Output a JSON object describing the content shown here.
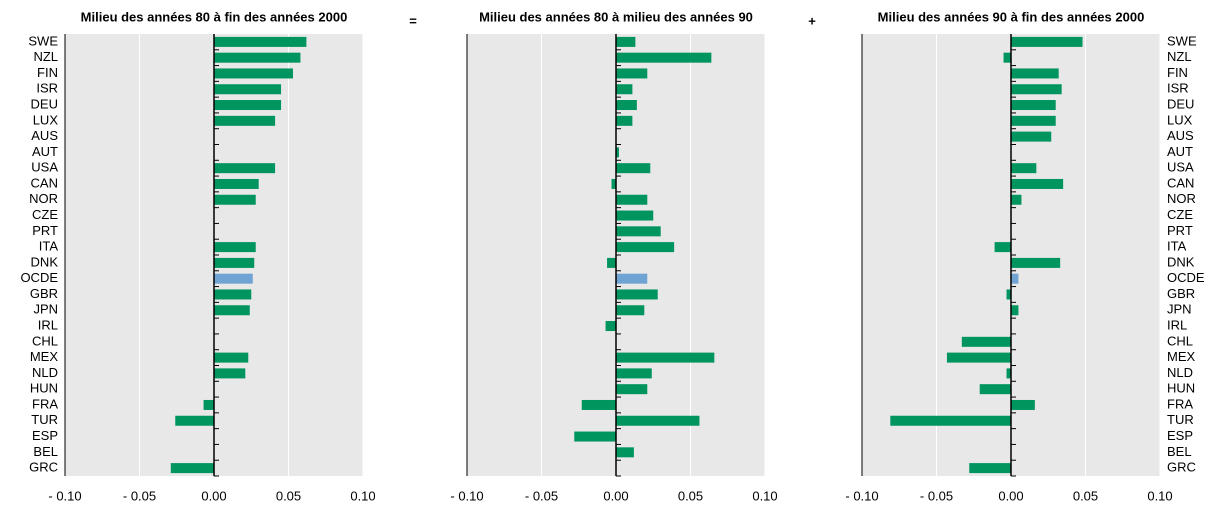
{
  "operators": [
    "=",
    "+"
  ],
  "chart_data": [
    {
      "type": "barh",
      "title": "Milieu des années 80 à fin des années 2000",
      "category_labels": "left",
      "categories": [
        "SWE",
        "NZL",
        "FIN",
        "ISR",
        "DEU",
        "LUX",
        "AUS",
        "AUT",
        "USA",
        "CAN",
        "NOR",
        "CZE",
        "PRT",
        "ITA",
        "DNK",
        "OCDE",
        "GBR",
        "JPN",
        "IRL",
        "CHL",
        "MEX",
        "NLD",
        "HUN",
        "FRA",
        "TUR",
        "ESP",
        "BEL",
        "GRC"
      ],
      "values": [
        0.062,
        0.058,
        0.053,
        0.045,
        0.045,
        0.041,
        0,
        0,
        0.041,
        0.03,
        0.028,
        0,
        0,
        0.028,
        0.027,
        0.026,
        0.025,
        0.024,
        0,
        0,
        0.023,
        0.021,
        0,
        -0.007,
        -0.026,
        0,
        0,
        -0.029
      ],
      "color": "#00945e",
      "highlight": {
        "category": "OCDE",
        "color": "#6fa3d3"
      },
      "xlim": [
        -0.1,
        0.1
      ],
      "xticks": [
        {
          "value": -0.1,
          "label": "- 0.10"
        },
        {
          "value": -0.05,
          "label": "- 0.05"
        },
        {
          "value": 0,
          "label": "0.00"
        },
        {
          "value": 0.05,
          "label": "0.05"
        },
        {
          "value": 0.1,
          "label": "0.10"
        }
      ],
      "grid": true
    },
    {
      "type": "barh",
      "title": "Milieu des années 80 à milieu des années 90",
      "category_labels": "none",
      "categories": [
        "SWE",
        "NZL",
        "FIN",
        "ISR",
        "DEU",
        "LUX",
        "AUS",
        "AUT",
        "USA",
        "CAN",
        "NOR",
        "CZE",
        "PRT",
        "ITA",
        "DNK",
        "OCDE",
        "GBR",
        "JPN",
        "IRL",
        "CHL",
        "MEX",
        "NLD",
        "HUN",
        "FRA",
        "TUR",
        "ESP",
        "BEL",
        "GRC"
      ],
      "values": [
        0.013,
        0.064,
        0.021,
        0.011,
        0.014,
        0.011,
        0,
        0.002,
        0.023,
        -0.003,
        0.021,
        0.025,
        0.03,
        0.039,
        -0.006,
        0.021,
        0.028,
        0.019,
        -0.007,
        0,
        0.066,
        0.024,
        0.021,
        -0.023,
        0.056,
        -0.028,
        0.012,
        0
      ],
      "color": "#00945e",
      "highlight": {
        "category": "OCDE",
        "color": "#6fa3d3"
      },
      "xlim": [
        -0.1,
        0.1
      ],
      "xticks": [
        {
          "value": -0.1,
          "label": "- 0.10"
        },
        {
          "value": -0.05,
          "label": "- 0.05"
        },
        {
          "value": 0,
          "label": "0.00"
        },
        {
          "value": 0.05,
          "label": "0.05"
        },
        {
          "value": 0.1,
          "label": "0.10"
        }
      ],
      "grid": true
    },
    {
      "type": "barh",
      "title": "Milieu des années 90 à fin des années 2000",
      "category_labels": "right",
      "categories": [
        "SWE",
        "NZL",
        "FIN",
        "ISR",
        "DEU",
        "LUX",
        "AUS",
        "AUT",
        "USA",
        "CAN",
        "NOR",
        "CZE",
        "PRT",
        "ITA",
        "DNK",
        "OCDE",
        "GBR",
        "JPN",
        "IRL",
        "CHL",
        "MEX",
        "NLD",
        "HUN",
        "FRA",
        "TUR",
        "ESP",
        "BEL",
        "GRC"
      ],
      "values": [
        0.048,
        -0.005,
        0.032,
        0.034,
        0.03,
        0.03,
        0.027,
        0,
        0.017,
        0.035,
        0.007,
        0,
        0,
        -0.011,
        0.033,
        0.005,
        -0.003,
        0.005,
        0,
        -0.033,
        -0.043,
        -0.003,
        -0.021,
        0.016,
        -0.081,
        0,
        0,
        -0.028
      ],
      "color": "#00945e",
      "highlight": {
        "category": "OCDE",
        "color": "#6fa3d3"
      },
      "xlim": [
        -0.1,
        0.1
      ],
      "xticks": [
        {
          "value": -0.1,
          "label": "- 0.10"
        },
        {
          "value": -0.05,
          "label": "- 0.05"
        },
        {
          "value": 0,
          "label": "0.00"
        },
        {
          "value": 0.05,
          "label": "0.05"
        },
        {
          "value": 0.1,
          "label": "0.10"
        }
      ],
      "grid": true
    }
  ]
}
